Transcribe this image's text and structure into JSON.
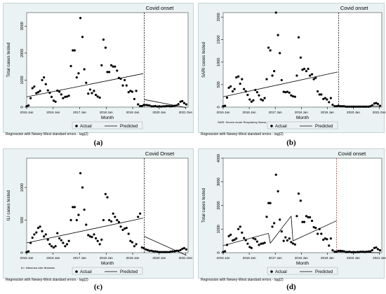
{
  "colors": {
    "panel_bg": "#eaf2f3",
    "plot_bg": "#ffffff",
    "point": "#000000",
    "line": "#000000",
    "onset_line_default": "#000000",
    "onset_line_d": "#e0262b"
  },
  "chart_data": [
    {
      "id": "a",
      "type": "scatter",
      "caption": "(a)",
      "title": "Covid onset",
      "xlabel": "Month",
      "ylabel": "Total cases tested",
      "ylim": [
        0,
        3500
      ],
      "yticks": [
        0,
        1000,
        2000,
        3000
      ],
      "xticks": [
        "2015 Jan",
        "2016 Jan",
        "2017 Jan",
        "2018 Jan",
        "2019 Jan",
        "2020 Jan",
        "2021 Dec"
      ],
      "xlim": [
        2015.0,
        2022.0
      ],
      "footnote": "",
      "model_note": "Regression with Newey-West standard errors - lag(2)",
      "legend": [
        "Actual",
        "Predicted"
      ],
      "onset": 2020.1,
      "x": [
        2015.0,
        2015.08,
        2015.17,
        2015.25,
        2015.33,
        2015.42,
        2015.5,
        2015.58,
        2015.67,
        2015.75,
        2015.83,
        2015.92,
        2016.0,
        2016.08,
        2016.17,
        2016.25,
        2016.33,
        2016.42,
        2016.5,
        2016.58,
        2016.67,
        2016.75,
        2016.83,
        2016.92,
        2017.0,
        2017.08,
        2017.17,
        2017.25,
        2017.33,
        2017.42,
        2017.5,
        2017.58,
        2017.67,
        2017.75,
        2017.83,
        2017.92,
        2018.0,
        2018.08,
        2018.17,
        2018.25,
        2018.33,
        2018.42,
        2018.5,
        2018.58,
        2018.67,
        2018.75,
        2018.83,
        2018.92,
        2019.0,
        2019.08,
        2019.17,
        2019.25,
        2019.33,
        2019.42,
        2019.5,
        2019.58,
        2019.67,
        2019.75,
        2019.83,
        2019.92,
        2020.0,
        2020.08,
        2020.17,
        2020.25,
        2020.33,
        2020.42,
        2020.5,
        2020.58,
        2020.67,
        2020.75,
        2020.83,
        2020.92,
        2021.0,
        2021.08,
        2021.17,
        2021.25,
        2021.33,
        2021.42,
        2021.5,
        2021.58,
        2021.67,
        2021.75,
        2021.83,
        2021.92
      ],
      "values": [
        30,
        60,
        330,
        700,
        760,
        520,
        550,
        600,
        1000,
        1100,
        850,
        620,
        530,
        380,
        240,
        200,
        610,
        570,
        470,
        330,
        380,
        390,
        420,
        1520,
        2100,
        2100,
        1100,
        1250,
        3300,
        2600,
        1400,
        900,
        500,
        650,
        520,
        600,
        450,
        390,
        350,
        1550,
        2500,
        2200,
        1300,
        1300,
        1550,
        1500,
        1500,
        1350,
        1080,
        1050,
        800,
        1000,
        800,
        550,
        600,
        570,
        300,
        600,
        100,
        40,
        40,
        80,
        80,
        70,
        60,
        30,
        30,
        40,
        20,
        30,
        20,
        30,
        30,
        40,
        40,
        30,
        40,
        50,
        60,
        110,
        200,
        220,
        150,
        100
      ],
      "predicted": [
        {
          "x": [
            2015.0,
            2020.05
          ],
          "y": [
            380,
            1240
          ]
        },
        {
          "x": [
            2020.1,
            2021.92
          ],
          "y": [
            280,
            -20
          ]
        }
      ]
    },
    {
      "id": "b",
      "type": "scatter",
      "caption": "(b)",
      "title": "Covid onset",
      "xlabel": "Month",
      "ylabel": "SARI cases tested",
      "ylim": [
        0,
        2100
      ],
      "yticks": [
        0,
        500,
        1000,
        1500,
        2000
      ],
      "xticks": [
        "2015 Jan",
        "2016 Jan",
        "2017 Jan",
        "2018 Jan",
        "2019 Jan",
        "2020 Jan",
        "2021 Dec"
      ],
      "xlim": [
        2015.0,
        2022.0
      ],
      "footnote": "SARI: Severe Acute Respiratory Illness",
      "model_note": "Regression with Newey-West standard errors - lag(2)",
      "legend": [
        "Actual",
        "Predicted"
      ],
      "onset": 2020.1,
      "x": [
        2015.0,
        2015.08,
        2015.17,
        2015.25,
        2015.33,
        2015.42,
        2015.5,
        2015.58,
        2015.67,
        2015.75,
        2015.83,
        2015.92,
        2016.0,
        2016.08,
        2016.17,
        2016.25,
        2016.33,
        2016.42,
        2016.5,
        2016.58,
        2016.67,
        2016.75,
        2016.83,
        2016.92,
        2017.0,
        2017.08,
        2017.17,
        2017.25,
        2017.33,
        2017.42,
        2017.5,
        2017.58,
        2017.67,
        2017.75,
        2017.83,
        2017.92,
        2018.0,
        2018.08,
        2018.17,
        2018.25,
        2018.33,
        2018.42,
        2018.5,
        2018.58,
        2018.67,
        2018.75,
        2018.83,
        2018.92,
        2019.0,
        2019.08,
        2019.17,
        2019.25,
        2019.33,
        2019.42,
        2019.5,
        2019.58,
        2019.67,
        2019.75,
        2019.83,
        2019.92,
        2020.0,
        2020.08,
        2020.17,
        2020.25,
        2020.33,
        2020.42,
        2020.5,
        2020.58,
        2020.67,
        2020.75,
        2020.83,
        2020.92,
        2021.0,
        2021.08,
        2021.17,
        2021.25,
        2021.33,
        2021.42,
        2021.5,
        2021.58,
        2021.67,
        2021.75,
        2021.83,
        2021.92
      ],
      "values": [
        20,
        30,
        210,
        430,
        460,
        350,
        400,
        660,
        680,
        520,
        620,
        400,
        350,
        270,
        170,
        120,
        150,
        380,
        330,
        260,
        170,
        150,
        200,
        620,
        1320,
        1260,
        700,
        800,
        2100,
        1600,
        1200,
        600,
        340,
        330,
        340,
        320,
        260,
        240,
        230,
        700,
        1550,
        1100,
        830,
        850,
        800,
        850,
        700,
        730,
        620,
        650,
        350,
        280,
        280,
        180,
        200,
        170,
        110,
        200,
        50,
        20,
        20,
        30,
        20,
        20,
        20,
        10,
        10,
        10,
        10,
        10,
        10,
        10,
        10,
        10,
        10,
        10,
        10,
        10,
        20,
        40,
        80,
        90,
        70,
        30
      ],
      "predicted": [
        {
          "x": [
            2015.0,
            2020.05
          ],
          "y": [
            230,
            780
          ]
        },
        {
          "x": [
            2020.1,
            2021.92
          ],
          "y": [
            20,
            20
          ]
        }
      ]
    },
    {
      "id": "c",
      "type": "scatter",
      "caption": "(c)",
      "title": "Covid Onset",
      "xlabel": "Month",
      "ylabel": "ILI cases tested",
      "ylim": [
        0,
        1450
      ],
      "yticks": [
        0,
        500,
        1000
      ],
      "xticks": [
        "2015 Jan",
        "2016 Jan",
        "2017 Jan",
        "2018 Jan",
        "2019 Jan",
        "2020 Jan",
        "2021 Dec"
      ],
      "xlim": [
        2015.0,
        2022.0
      ],
      "footnote": "ILI: Influenza Like Illnesses",
      "model_note": "Regression with Newey-West standard errors - lag(2)",
      "legend": [
        "Actual",
        "Predicted"
      ],
      "onset": 2020.1,
      "x": [
        2015.0,
        2015.08,
        2015.17,
        2015.25,
        2015.33,
        2015.42,
        2015.5,
        2015.58,
        2015.67,
        2015.75,
        2015.83,
        2015.92,
        2016.0,
        2016.08,
        2016.17,
        2016.25,
        2016.33,
        2016.42,
        2016.5,
        2016.58,
        2016.67,
        2016.75,
        2016.83,
        2016.92,
        2017.0,
        2017.08,
        2017.17,
        2017.25,
        2017.33,
        2017.42,
        2017.5,
        2017.58,
        2017.67,
        2017.75,
        2017.83,
        2017.92,
        2018.0,
        2018.08,
        2018.17,
        2018.25,
        2018.33,
        2018.42,
        2018.5,
        2018.58,
        2018.67,
        2018.75,
        2018.83,
        2018.92,
        2019.0,
        2019.08,
        2019.17,
        2019.25,
        2019.33,
        2019.42,
        2019.5,
        2019.58,
        2019.67,
        2019.75,
        2019.83,
        2019.92,
        2020.0,
        2020.08,
        2020.17,
        2020.25,
        2020.33,
        2020.42,
        2020.5,
        2020.58,
        2020.67,
        2020.75,
        2020.83,
        2020.92,
        2021.0,
        2021.08,
        2021.17,
        2021.25,
        2021.33,
        2021.42,
        2021.5,
        2021.58,
        2021.67,
        2021.75,
        2021.83,
        2021.92
      ],
      "values": [
        10,
        20,
        150,
        230,
        280,
        310,
        380,
        400,
        330,
        250,
        280,
        200,
        130,
        100,
        80,
        100,
        300,
        220,
        190,
        150,
        100,
        130,
        180,
        500,
        700,
        700,
        500,
        580,
        1220,
        1000,
        660,
        430,
        270,
        250,
        240,
        280,
        220,
        180,
        130,
        200,
        500,
        900,
        850,
        500,
        480,
        600,
        550,
        500,
        470,
        400,
        350,
        370,
        380,
        290,
        180,
        160,
        100,
        130,
        550,
        600,
        80,
        70,
        50,
        40,
        30,
        30,
        20,
        20,
        15,
        10,
        10,
        10,
        10,
        10,
        10,
        15,
        20,
        20,
        30,
        30,
        40,
        60,
        70,
        50
      ],
      "predicted": [
        {
          "x": [
            2015.0,
            2020.05
          ],
          "y": [
            150,
            530
          ]
        },
        {
          "x": [
            2020.1,
            2021.92
          ],
          "y": [
            250,
            -40
          ]
        }
      ]
    },
    {
      "id": "d",
      "type": "scatter",
      "caption": "(d)",
      "title": "Covid onset",
      "xlabel": "Month",
      "ylabel": "Total cases tested",
      "ylim": [
        0,
        4000
      ],
      "yticks": [
        0,
        1000,
        2000,
        3000,
        4000
      ],
      "xticks": [
        "2015 Jan",
        "2016 Jan",
        "2017 Jan",
        "2018 Jan",
        "2019 Jan",
        "2020 Jan",
        "2021 Jan"
      ],
      "xlim": [
        2015.0,
        2022.0
      ],
      "footnote": "",
      "model_note": "Regression with Newey-West standard errors - lag(2)",
      "legend": [
        "Actual",
        "Predicted"
      ],
      "onset": 2020.0,
      "x": [
        2015.0,
        2015.08,
        2015.17,
        2015.25,
        2015.33,
        2015.42,
        2015.5,
        2015.58,
        2015.67,
        2015.75,
        2015.83,
        2015.92,
        2016.0,
        2016.08,
        2016.17,
        2016.25,
        2016.33,
        2016.42,
        2016.5,
        2016.58,
        2016.67,
        2016.75,
        2016.83,
        2016.92,
        2017.0,
        2017.08,
        2017.17,
        2017.25,
        2017.33,
        2017.42,
        2017.5,
        2017.58,
        2017.67,
        2017.75,
        2017.83,
        2017.92,
        2018.0,
        2018.08,
        2018.17,
        2018.25,
        2018.33,
        2018.42,
        2018.5,
        2018.58,
        2018.67,
        2018.75,
        2018.83,
        2018.92,
        2019.0,
        2019.08,
        2019.17,
        2019.25,
        2019.33,
        2019.42,
        2019.5,
        2019.58,
        2019.67,
        2019.75,
        2019.83,
        2019.92,
        2020.0,
        2020.08,
        2020.17,
        2020.25,
        2020.33,
        2020.42,
        2020.5,
        2020.58,
        2020.67,
        2020.75,
        2020.83,
        2020.92,
        2021.0,
        2021.08,
        2021.17,
        2021.25,
        2021.33,
        2021.42,
        2021.5,
        2021.58,
        2021.67,
        2021.75,
        2021.83,
        2021.92
      ],
      "values": [
        30,
        60,
        330,
        700,
        760,
        520,
        550,
        600,
        1000,
        1100,
        850,
        620,
        530,
        380,
        240,
        200,
        610,
        570,
        470,
        330,
        380,
        390,
        420,
        1520,
        2100,
        2100,
        1100,
        1250,
        3300,
        2600,
        1400,
        900,
        500,
        650,
        520,
        600,
        450,
        390,
        350,
        1550,
        2500,
        2200,
        1300,
        1300,
        1550,
        1500,
        1500,
        1350,
        1080,
        1050,
        800,
        1000,
        800,
        550,
        600,
        570,
        300,
        600,
        100,
        40,
        40,
        80,
        80,
        70,
        60,
        30,
        30,
        40,
        20,
        30,
        20,
        30,
        30,
        40,
        40,
        30,
        40,
        50,
        60,
        110,
        200,
        220,
        150,
        100
      ],
      "predicted": [
        {
          "x": [
            2015.0,
            2017.0
          ],
          "y": [
            300,
            820
          ]
        },
        {
          "x": [
            2017.0,
            2017.08
          ],
          "y": [
            820,
            400
          ]
        },
        {
          "x": [
            2017.08,
            2018.0
          ],
          "y": [
            400,
            1550
          ]
        },
        {
          "x": [
            2018.0,
            2018.08
          ],
          "y": [
            1550,
            500
          ]
        },
        {
          "x": [
            2018.08,
            2020.0
          ],
          "y": [
            500,
            1350
          ]
        },
        {
          "x": [
            2020.05,
            2021.0
          ],
          "y": [
            30,
            20
          ]
        },
        {
          "x": [
            2021.0,
            2021.92
          ],
          "y": [
            20,
            0
          ]
        }
      ]
    }
  ]
}
